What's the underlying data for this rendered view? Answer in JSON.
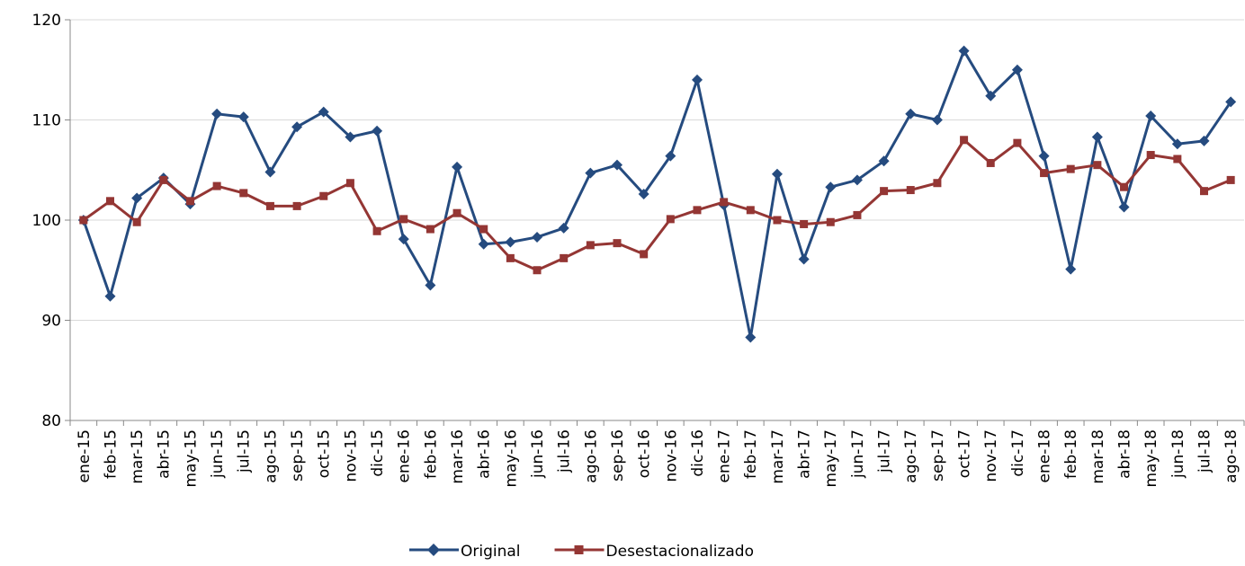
{
  "chart_data": {
    "type": "line",
    "categories": [
      "ene-15",
      "feb-15",
      "mar-15",
      "abr-15",
      "may-15",
      "jun-15",
      "jul-15",
      "ago-15",
      "sep-15",
      "oct-15",
      "nov-15",
      "dic-15",
      "ene-16",
      "feb-16",
      "mar-16",
      "abr-16",
      "may-16",
      "jun-16",
      "jul-16",
      "ago-16",
      "sep-16",
      "oct-16",
      "nov-16",
      "dic-16",
      "ene-17",
      "feb-17",
      "mar-17",
      "abr-17",
      "may-17",
      "jun-17",
      "jul-17",
      "ago-17",
      "sep-17",
      "oct-17",
      "nov-17",
      "dic-17",
      "ene-18",
      "feb-18",
      "mar-18",
      "abr-18",
      "may-18",
      "jun-18",
      "jul-18",
      "ago-18"
    ],
    "series": [
      {
        "name": "Original",
        "color": "#254b7f",
        "marker": "diamond",
        "values": [
          100,
          92.4,
          102.2,
          104.2,
          101.6,
          110.6,
          110.3,
          104.8,
          109.3,
          110.8,
          108.3,
          108.9,
          98.1,
          93.5,
          105.3,
          97.6,
          97.8,
          98.3,
          99.2,
          104.7,
          105.5,
          102.6,
          106.4,
          114.0,
          101.5,
          88.3,
          104.6,
          96.1,
          103.3,
          104.0,
          105.9,
          110.6,
          110.0,
          116.9,
          112.4,
          115.0,
          106.4,
          95.1,
          108.3,
          101.3,
          110.4,
          107.6,
          107.9,
          111.8
        ]
      },
      {
        "name": "Desestacionalizado",
        "color": "#943634",
        "marker": "square",
        "values": [
          100,
          101.9,
          99.8,
          104.0,
          101.9,
          103.4,
          102.7,
          101.4,
          101.4,
          102.4,
          103.7,
          98.9,
          100.1,
          99.1,
          100.7,
          99.1,
          96.2,
          95.0,
          96.2,
          97.5,
          97.7,
          96.6,
          100.1,
          101.0,
          101.8,
          101.0,
          100.0,
          99.6,
          99.8,
          100.5,
          102.9,
          103.0,
          103.7,
          108.0,
          105.7,
          107.7,
          104.7,
          105.1,
          105.5,
          103.3,
          106.5,
          106.1,
          102.9,
          104.0
        ]
      }
    ],
    "ylim": [
      80,
      120
    ],
    "yticks": [
      80,
      90,
      100,
      110,
      120
    ],
    "grid": true,
    "legend": "bottom"
  }
}
